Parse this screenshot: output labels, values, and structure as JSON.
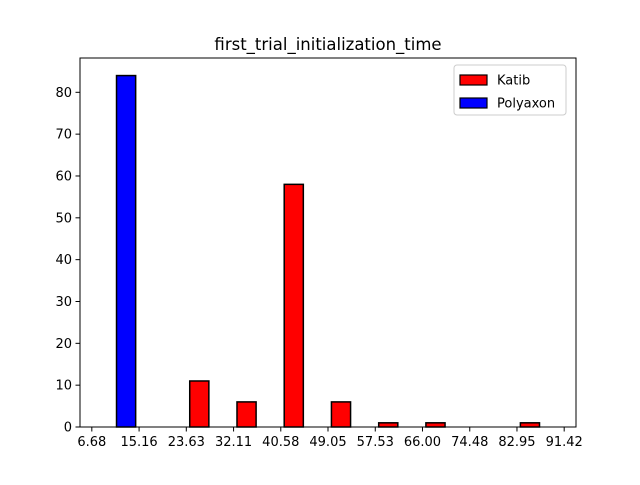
{
  "chart_data": {
    "type": "bar",
    "title": "first_trial_initialization_time",
    "xlabel": "",
    "ylabel": "",
    "x_tick_labels": [
      "6.68",
      "15.16",
      "23.63",
      "32.11",
      "40.58",
      "49.05",
      "57.53",
      "66.00",
      "74.48",
      "82.95",
      "91.42"
    ],
    "bin_edges": [
      6.68,
      15.16,
      23.63,
      32.11,
      40.58,
      49.05,
      57.53,
      66.0,
      74.48,
      82.95,
      91.42
    ],
    "xlim": [
      4.56,
      93.54
    ],
    "ylim": [
      0,
      88.2
    ],
    "y_ticks": [
      0,
      10,
      20,
      30,
      40,
      50,
      60,
      70,
      80
    ],
    "grid": false,
    "legend_position": "top-right",
    "series": [
      {
        "name": "Katib",
        "color": "#ff0000",
        "values": [
          0,
          0,
          11,
          6,
          58,
          6,
          1,
          1,
          0,
          1
        ]
      },
      {
        "name": "Polyaxon",
        "color": "#0000ff",
        "values": [
          84,
          0,
          0,
          0,
          0,
          0,
          0,
          0,
          0,
          0
        ]
      }
    ]
  }
}
